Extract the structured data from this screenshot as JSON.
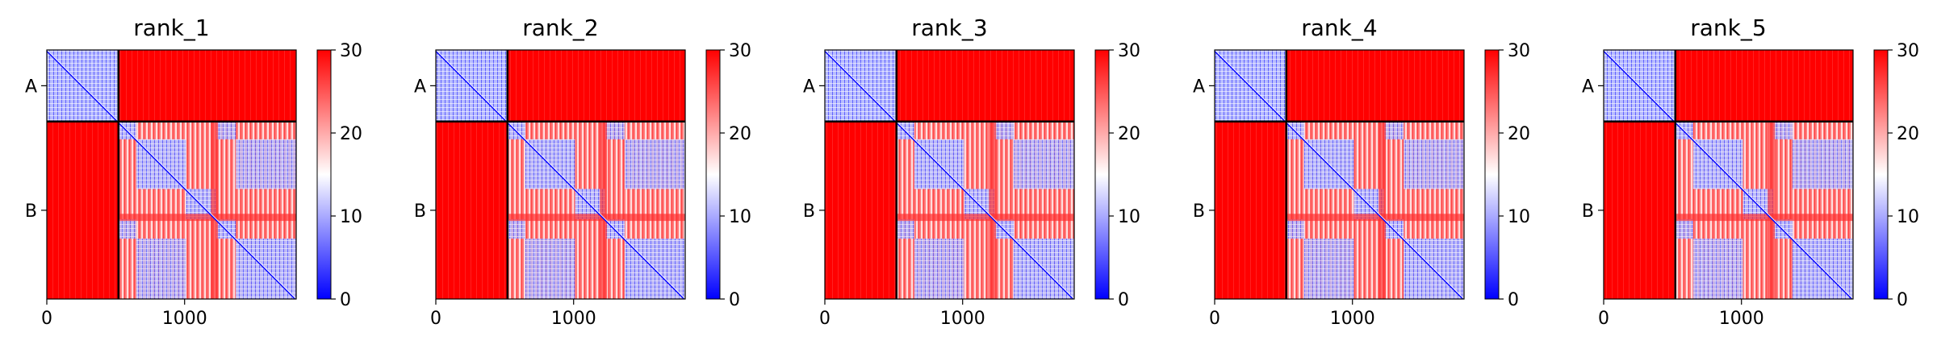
{
  "chart_data": [
    {
      "type": "heatmap",
      "title": "rank_1",
      "x_ticks": [
        0,
        1000
      ],
      "y_tick_labels": [
        "A",
        "B"
      ],
      "chain_lengths": {
        "A": 520,
        "B": 1290
      },
      "total_length": 1810,
      "colorbar": {
        "min": 0,
        "max": 30,
        "ticks": [
          0,
          10,
          20,
          30
        ],
        "colors": [
          "#0000ff",
          "#ffffff",
          "#ff0000"
        ]
      }
    },
    {
      "type": "heatmap",
      "title": "rank_2",
      "x_ticks": [
        0,
        1000
      ],
      "y_tick_labels": [
        "A",
        "B"
      ],
      "chain_lengths": {
        "A": 520,
        "B": 1290
      },
      "total_length": 1810,
      "colorbar": {
        "min": 0,
        "max": 30,
        "ticks": [
          0,
          10,
          20,
          30
        ],
        "colors": [
          "#0000ff",
          "#ffffff",
          "#ff0000"
        ]
      }
    },
    {
      "type": "heatmap",
      "title": "rank_3",
      "x_ticks": [
        0,
        1000
      ],
      "y_tick_labels": [
        "A",
        "B"
      ],
      "chain_lengths": {
        "A": 520,
        "B": 1290
      },
      "total_length": 1810,
      "colorbar": {
        "min": 0,
        "max": 30,
        "ticks": [
          0,
          10,
          20,
          30
        ],
        "colors": [
          "#0000ff",
          "#ffffff",
          "#ff0000"
        ]
      }
    },
    {
      "type": "heatmap",
      "title": "rank_4",
      "x_ticks": [
        0,
        1000
      ],
      "y_tick_labels": [
        "A",
        "B"
      ],
      "chain_lengths": {
        "A": 520,
        "B": 1290
      },
      "total_length": 1810,
      "colorbar": {
        "min": 0,
        "max": 30,
        "ticks": [
          0,
          10,
          20,
          30
        ],
        "colors": [
          "#0000ff",
          "#ffffff",
          "#ff0000"
        ]
      }
    },
    {
      "type": "heatmap",
      "title": "rank_5",
      "x_ticks": [
        0,
        1000
      ],
      "y_tick_labels": [
        "A",
        "B"
      ],
      "chain_lengths": {
        "A": 520,
        "B": 1290
      },
      "total_length": 1810,
      "colorbar": {
        "min": 0,
        "max": 30,
        "ticks": [
          0,
          10,
          20,
          30
        ],
        "colors": [
          "#0000ff",
          "#ffffff",
          "#ff0000"
        ]
      }
    }
  ]
}
